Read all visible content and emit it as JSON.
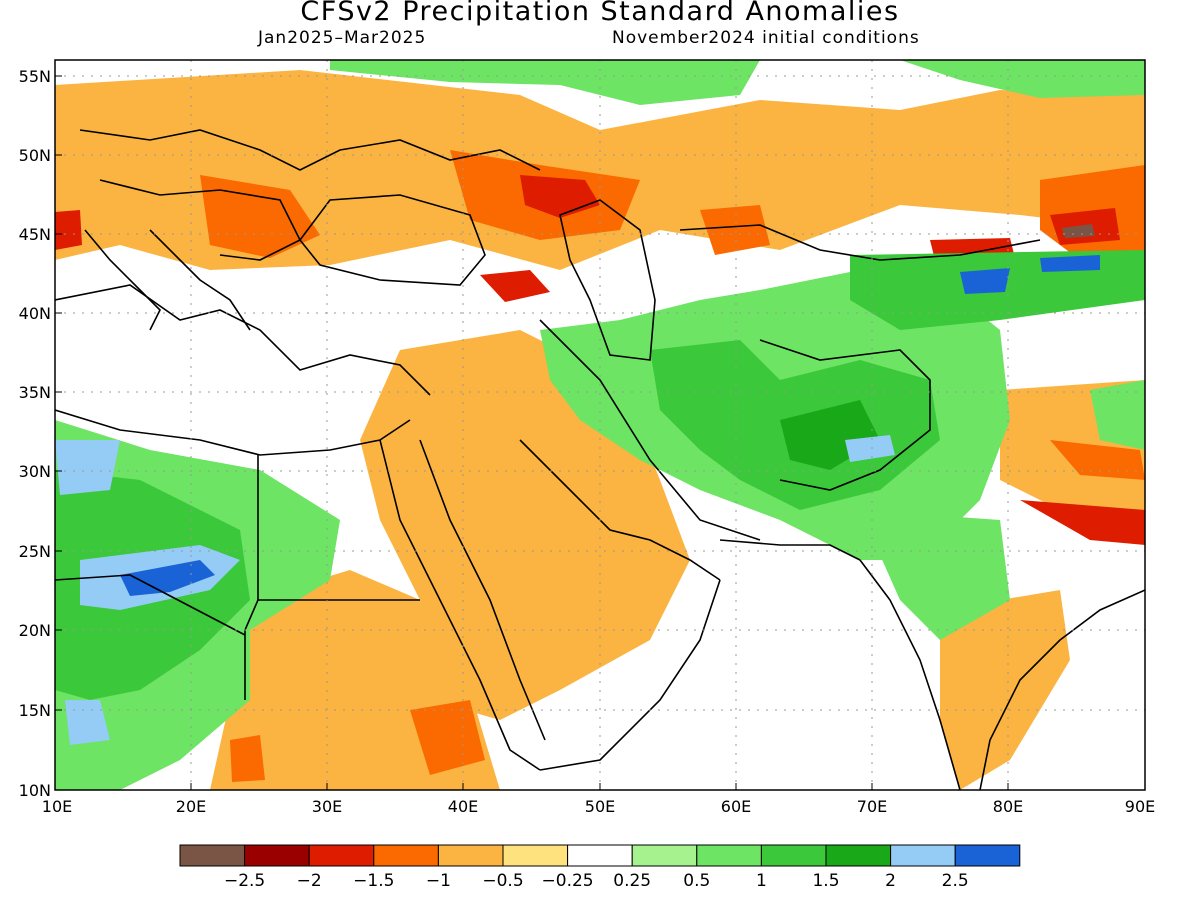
{
  "title": "CFSv2 Precipitation Standard Anomalies",
  "subtitle_left": "Jan2025–Mar2025",
  "subtitle_right": "November2024 initial conditions",
  "lat_ticks": [
    "55N",
    "50N",
    "45N",
    "40N",
    "35N",
    "30N",
    "25N",
    "20N",
    "15N",
    "10N"
  ],
  "lon_ticks": [
    "10E",
    "20E",
    "30E",
    "40E",
    "50E",
    "60E",
    "70E",
    "80E",
    "90E"
  ],
  "legend": {
    "colors": [
      "#7a5545",
      "#9b0000",
      "#dd1c00",
      "#fa6a00",
      "#fbb441",
      "#fde27d",
      "#ffffff",
      "#a6f28f",
      "#6de464",
      "#3bc83b",
      "#18a818",
      "#94ccf5",
      "#1a63d6"
    ],
    "labels": [
      "−2.5",
      "−2",
      "−1.5",
      "−1",
      "−0.5",
      "−0.25",
      "0.25",
      "0.5",
      "1",
      "1.5",
      "2",
      "2.5"
    ]
  }
}
